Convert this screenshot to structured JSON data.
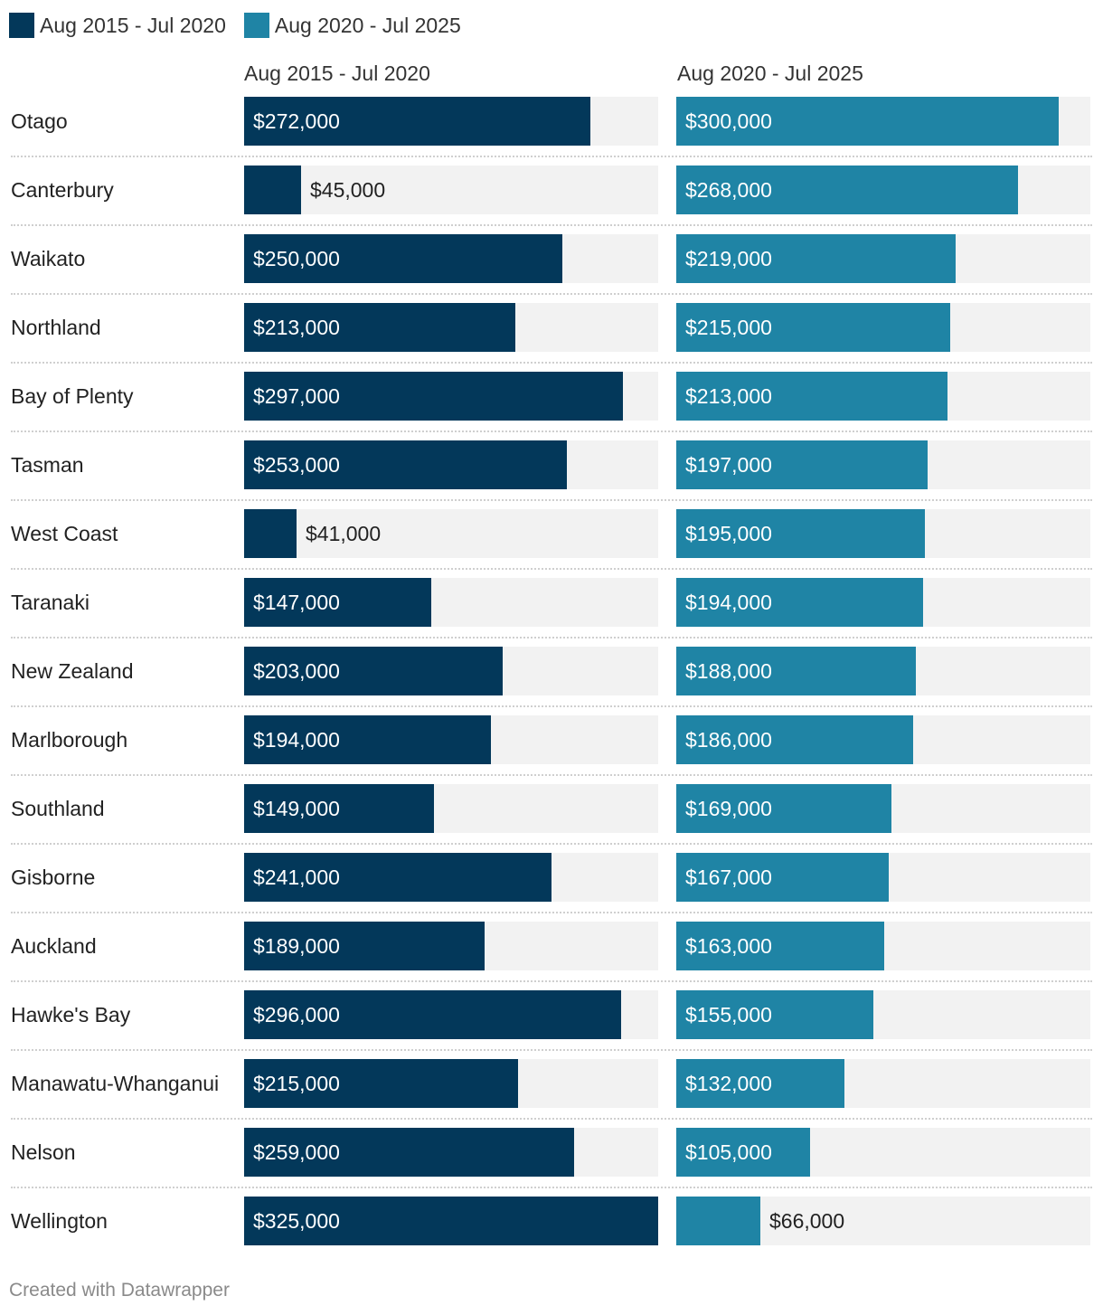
{
  "legend": [
    {
      "label": "Aug 2015 - Jul 2020",
      "color": "#03385a"
    },
    {
      "label": "Aug 2020 - Jul 2025",
      "color": "#1f84a5"
    }
  ],
  "footer": "Created with Datawrapper",
  "chart_data": {
    "type": "bar",
    "orientation": "horizontal",
    "layout": "split-bars",
    "xlim": [
      0,
      325000
    ],
    "categories": [
      "Otago",
      "Canterbury",
      "Waikato",
      "Northland",
      "Bay of Plenty",
      "Tasman",
      "West Coast",
      "Taranaki",
      "New Zealand",
      "Marlborough",
      "Southland",
      "Gisborne",
      "Auckland",
      "Hawke's Bay",
      "Manawatu-Whanganui",
      "Nelson",
      "Wellington"
    ],
    "series": [
      {
        "name": "Aug 2015 - Jul 2020",
        "color": "#03385a",
        "values": [
          272000,
          45000,
          250000,
          213000,
          297000,
          253000,
          41000,
          147000,
          203000,
          194000,
          149000,
          241000,
          189000,
          296000,
          215000,
          259000,
          325000
        ],
        "labels": [
          "$272,000",
          "$45,000",
          "$250,000",
          "$213,000",
          "$297,000",
          "$253,000",
          "$41,000",
          "$147,000",
          "$203,000",
          "$194,000",
          "$149,000",
          "$241,000",
          "$189,000",
          "$296,000",
          "$215,000",
          "$259,000",
          "$325,000"
        ]
      },
      {
        "name": "Aug 2020 - Jul 2025",
        "color": "#1f84a5",
        "values": [
          300000,
          268000,
          219000,
          215000,
          213000,
          197000,
          195000,
          194000,
          188000,
          186000,
          169000,
          167000,
          163000,
          155000,
          132000,
          105000,
          66000
        ],
        "labels": [
          "$300,000",
          "$268,000",
          "$219,000",
          "$215,000",
          "$213,000",
          "$197,000",
          "$195,000",
          "$194,000",
          "$188,000",
          "$186,000",
          "$169,000",
          "$167,000",
          "$163,000",
          "$155,000",
          "$132,000",
          "$105,000",
          "$66,000"
        ]
      }
    ]
  }
}
